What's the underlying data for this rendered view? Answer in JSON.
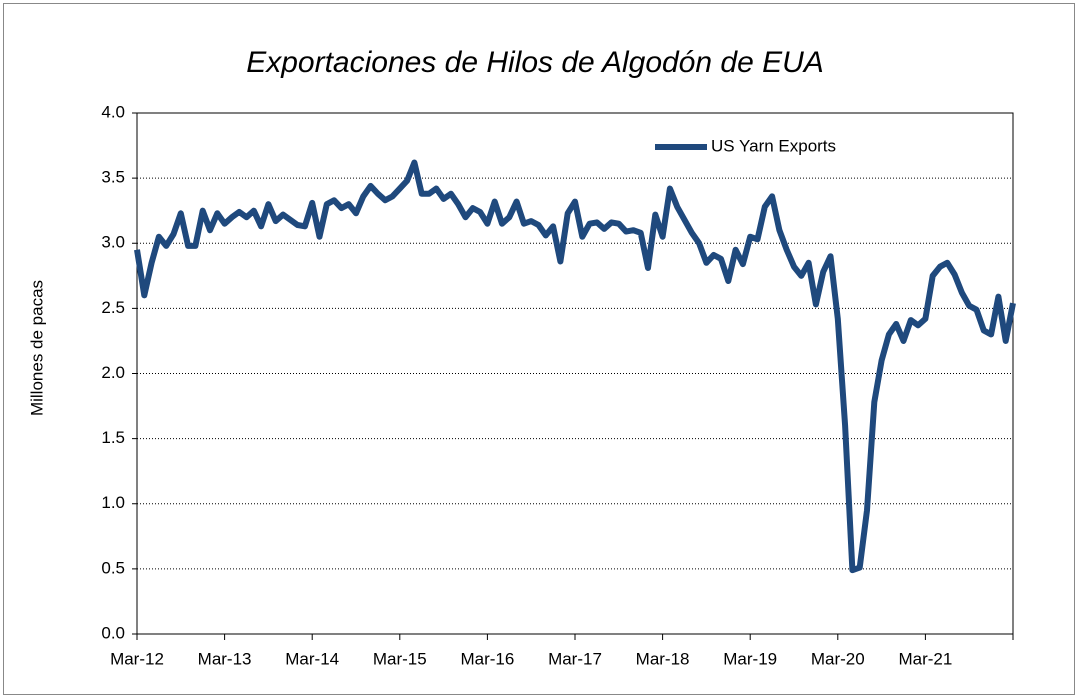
{
  "chart_data": {
    "type": "line",
    "title": "Exportaciones de Hilos de Algodón de EUA",
    "y_label": "Millones de pacas",
    "categories": [
      "Mar-12",
      null,
      null,
      null,
      null,
      null,
      null,
      null,
      null,
      null,
      null,
      null,
      "Mar-13",
      null,
      null,
      null,
      null,
      null,
      null,
      null,
      null,
      null,
      null,
      null,
      "Mar-14",
      null,
      null,
      null,
      null,
      null,
      null,
      null,
      null,
      null,
      null,
      null,
      "Mar-15",
      null,
      null,
      null,
      null,
      null,
      null,
      null,
      null,
      null,
      null,
      null,
      "Mar-16",
      null,
      null,
      null,
      null,
      null,
      null,
      null,
      null,
      null,
      null,
      null,
      "Mar-17",
      null,
      null,
      null,
      null,
      null,
      null,
      null,
      null,
      null,
      null,
      null,
      "Mar-18",
      null,
      null,
      null,
      null,
      null,
      null,
      null,
      null,
      null,
      null,
      null,
      "Mar-19",
      null,
      null,
      null,
      null,
      null,
      null,
      null,
      null,
      null,
      null,
      null,
      "Mar-20",
      null,
      null,
      null,
      null,
      null,
      null,
      null,
      null,
      null,
      null,
      null,
      "Mar-21",
      null,
      null,
      null,
      null,
      null,
      null,
      null,
      null,
      null,
      null,
      null,
      null
    ],
    "series": [
      {
        "name": "US Yarn Exports",
        "color": "#1f497d",
        "values": [
          2.95,
          2.6,
          2.85,
          3.05,
          2.98,
          3.07,
          3.23,
          2.98,
          2.98,
          3.25,
          3.1,
          3.23,
          3.15,
          3.2,
          3.24,
          3.2,
          3.25,
          3.13,
          3.3,
          3.17,
          3.22,
          3.18,
          3.14,
          3.13,
          3.31,
          3.05,
          3.3,
          3.33,
          3.27,
          3.3,
          3.23,
          3.36,
          3.44,
          3.38,
          3.33,
          3.36,
          3.42,
          3.48,
          3.62,
          3.38,
          3.38,
          3.42,
          3.34,
          3.38,
          3.3,
          3.2,
          3.27,
          3.24,
          3.15,
          3.32,
          3.15,
          3.2,
          3.32,
          3.15,
          3.17,
          3.14,
          3.06,
          3.13,
          2.86,
          3.23,
          3.32,
          3.05,
          3.15,
          3.16,
          3.11,
          3.16,
          3.15,
          3.09,
          3.1,
          3.08,
          2.81,
          3.22,
          3.05,
          3.42,
          3.28,
          3.18,
          3.08,
          3.0,
          2.85,
          2.91,
          2.88,
          2.71,
          2.95,
          2.84,
          3.05,
          3.03,
          3.28,
          3.36,
          3.1,
          2.95,
          2.82,
          2.75,
          2.85,
          2.53,
          2.78,
          2.9,
          2.42,
          1.6,
          0.49,
          0.51,
          0.95,
          1.78,
          2.1,
          2.3,
          2.38,
          2.25,
          2.41,
          2.37,
          2.42,
          2.75,
          2.82,
          2.85,
          2.76,
          2.62,
          2.52,
          2.49,
          2.33,
          2.3,
          2.59,
          2.25,
          2.54
        ]
      }
    ],
    "ylim": [
      0,
      4
    ],
    "yticks": [
      {
        "value": 0,
        "label": "0.0"
      },
      {
        "value": 0.5,
        "label": "0.5"
      },
      {
        "value": 1,
        "label": "1.0"
      },
      {
        "value": 1.5,
        "label": "1.5"
      },
      {
        "value": 2,
        "label": "2.0"
      },
      {
        "value": 2.5,
        "label": "2.5"
      },
      {
        "value": 3,
        "label": "3.0"
      },
      {
        "value": 3.5,
        "label": "3.5"
      },
      {
        "value": 4,
        "label": "4.0"
      }
    ],
    "grid": true,
    "legend": "top-right"
  }
}
